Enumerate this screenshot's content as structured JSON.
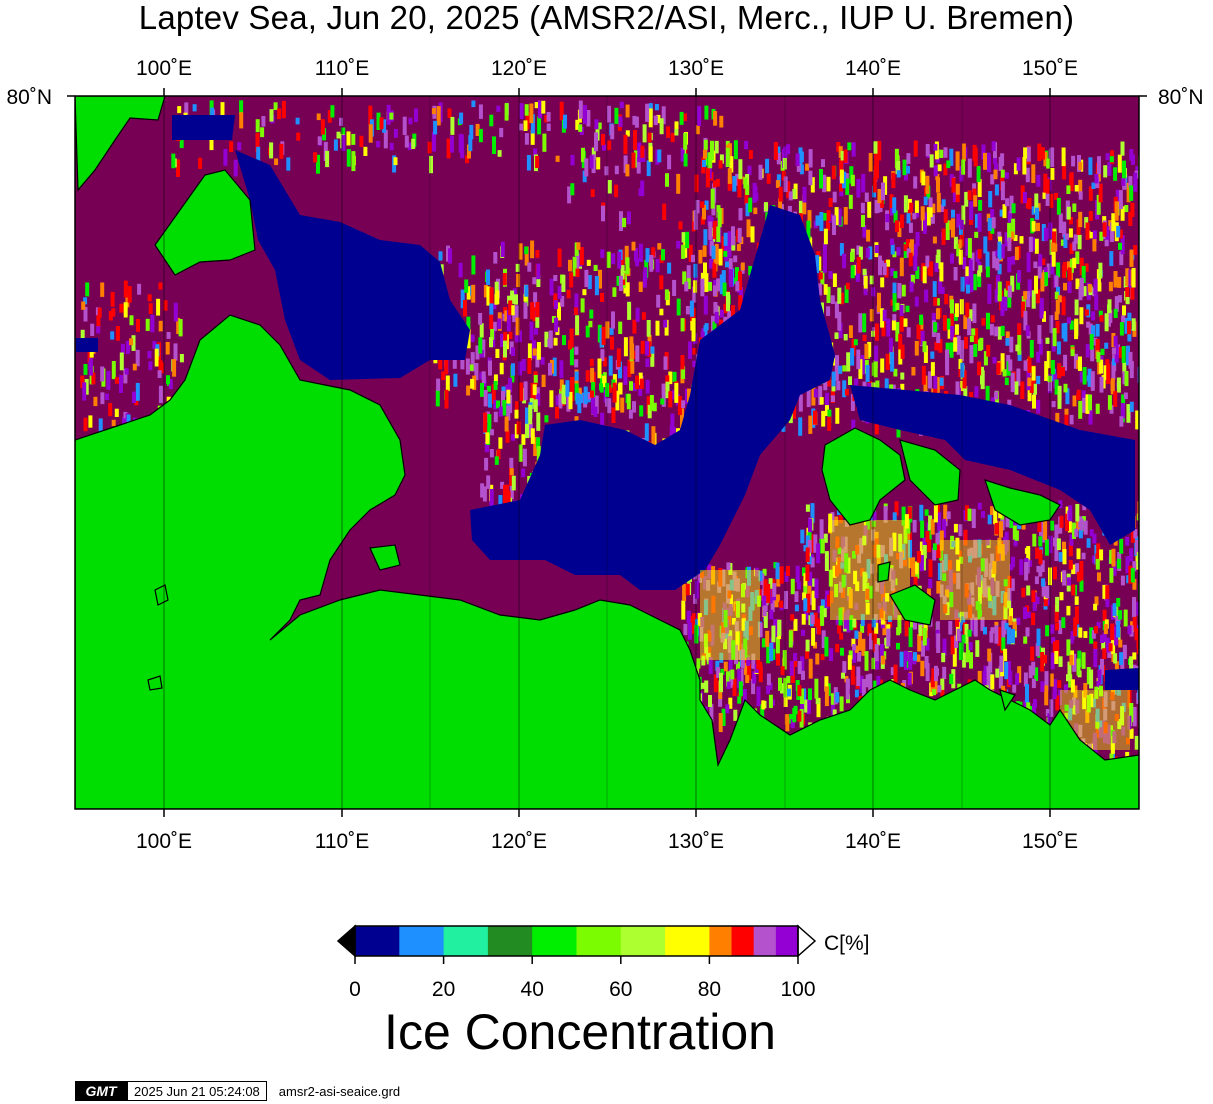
{
  "title": "Laptev Sea, Jun 20, 2025 (AMSR2/ASI, Merc., IUP U. Bremen)",
  "map": {
    "lon_labels": [
      "100˚E",
      "110˚E",
      "120˚E",
      "130˚E",
      "140˚E",
      "150˚E"
    ],
    "lat_label_left": "80˚N",
    "lat_label_right": "80˚N",
    "lon_range": [
      95,
      155
    ],
    "colors": {
      "land": "#00dd00",
      "open_water": "#000090",
      "full_ice": "#770055",
      "coastline": "#000000"
    }
  },
  "colorbar": {
    "unit_label": "C[%]",
    "ticks": [
      "0",
      "20",
      "40",
      "60",
      "80",
      "100"
    ],
    "bins": [
      {
        "range": "0-10",
        "color": "#000090"
      },
      {
        "range": "10-20",
        "color": "#1e90ff"
      },
      {
        "range": "20-30",
        "color": "#20f0a0"
      },
      {
        "range": "30-40",
        "color": "#228b22"
      },
      {
        "range": "40-50",
        "color": "#00ee00"
      },
      {
        "range": "50-60",
        "color": "#7cfc00"
      },
      {
        "range": "60-70",
        "color": "#adff2f"
      },
      {
        "range": "70-75",
        "color": "#ffff00"
      },
      {
        "range": "75-80",
        "color": "#ffff00"
      },
      {
        "range": "80-85",
        "color": "#ff7f00"
      },
      {
        "range": "85-90",
        "color": "#ff0000"
      },
      {
        "range": "90-95",
        "color": "#b452cd"
      },
      {
        "range": "95-100",
        "color": "#9400d3"
      }
    ],
    "title": "Ice Concentration"
  },
  "footer": {
    "logo": "GMT",
    "timestamp": "2025 Jun 21 05:24:08",
    "grid_file": "amsr2-asi-seaice.grd"
  }
}
